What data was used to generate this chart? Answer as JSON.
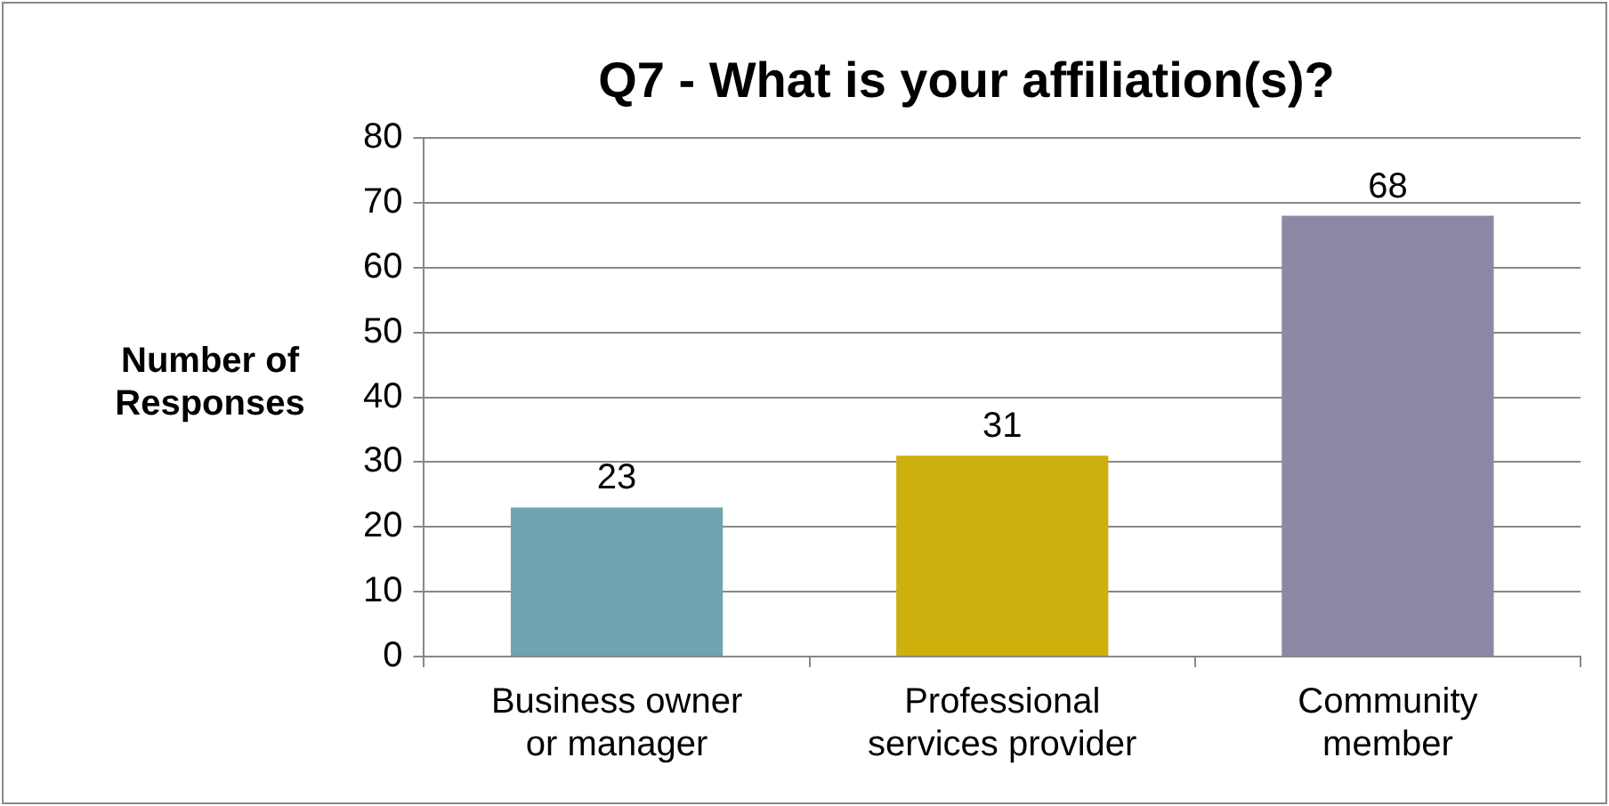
{
  "chart_data": {
    "type": "bar",
    "title": "Q7 - What is your affiliation(s)?",
    "ylabel": "Number of Responses",
    "categories": [
      "Business owner or manager",
      "Professional services provider",
      "Community member"
    ],
    "values": [
      23,
      31,
      68
    ],
    "colors": [
      "#71a3b0",
      "#cdb00e",
      "#8d87a6"
    ],
    "ylim": [
      0,
      80
    ],
    "yticks": [
      0,
      10,
      20,
      30,
      40,
      50,
      60,
      70,
      80
    ],
    "grid": "y",
    "data_labels": true
  }
}
